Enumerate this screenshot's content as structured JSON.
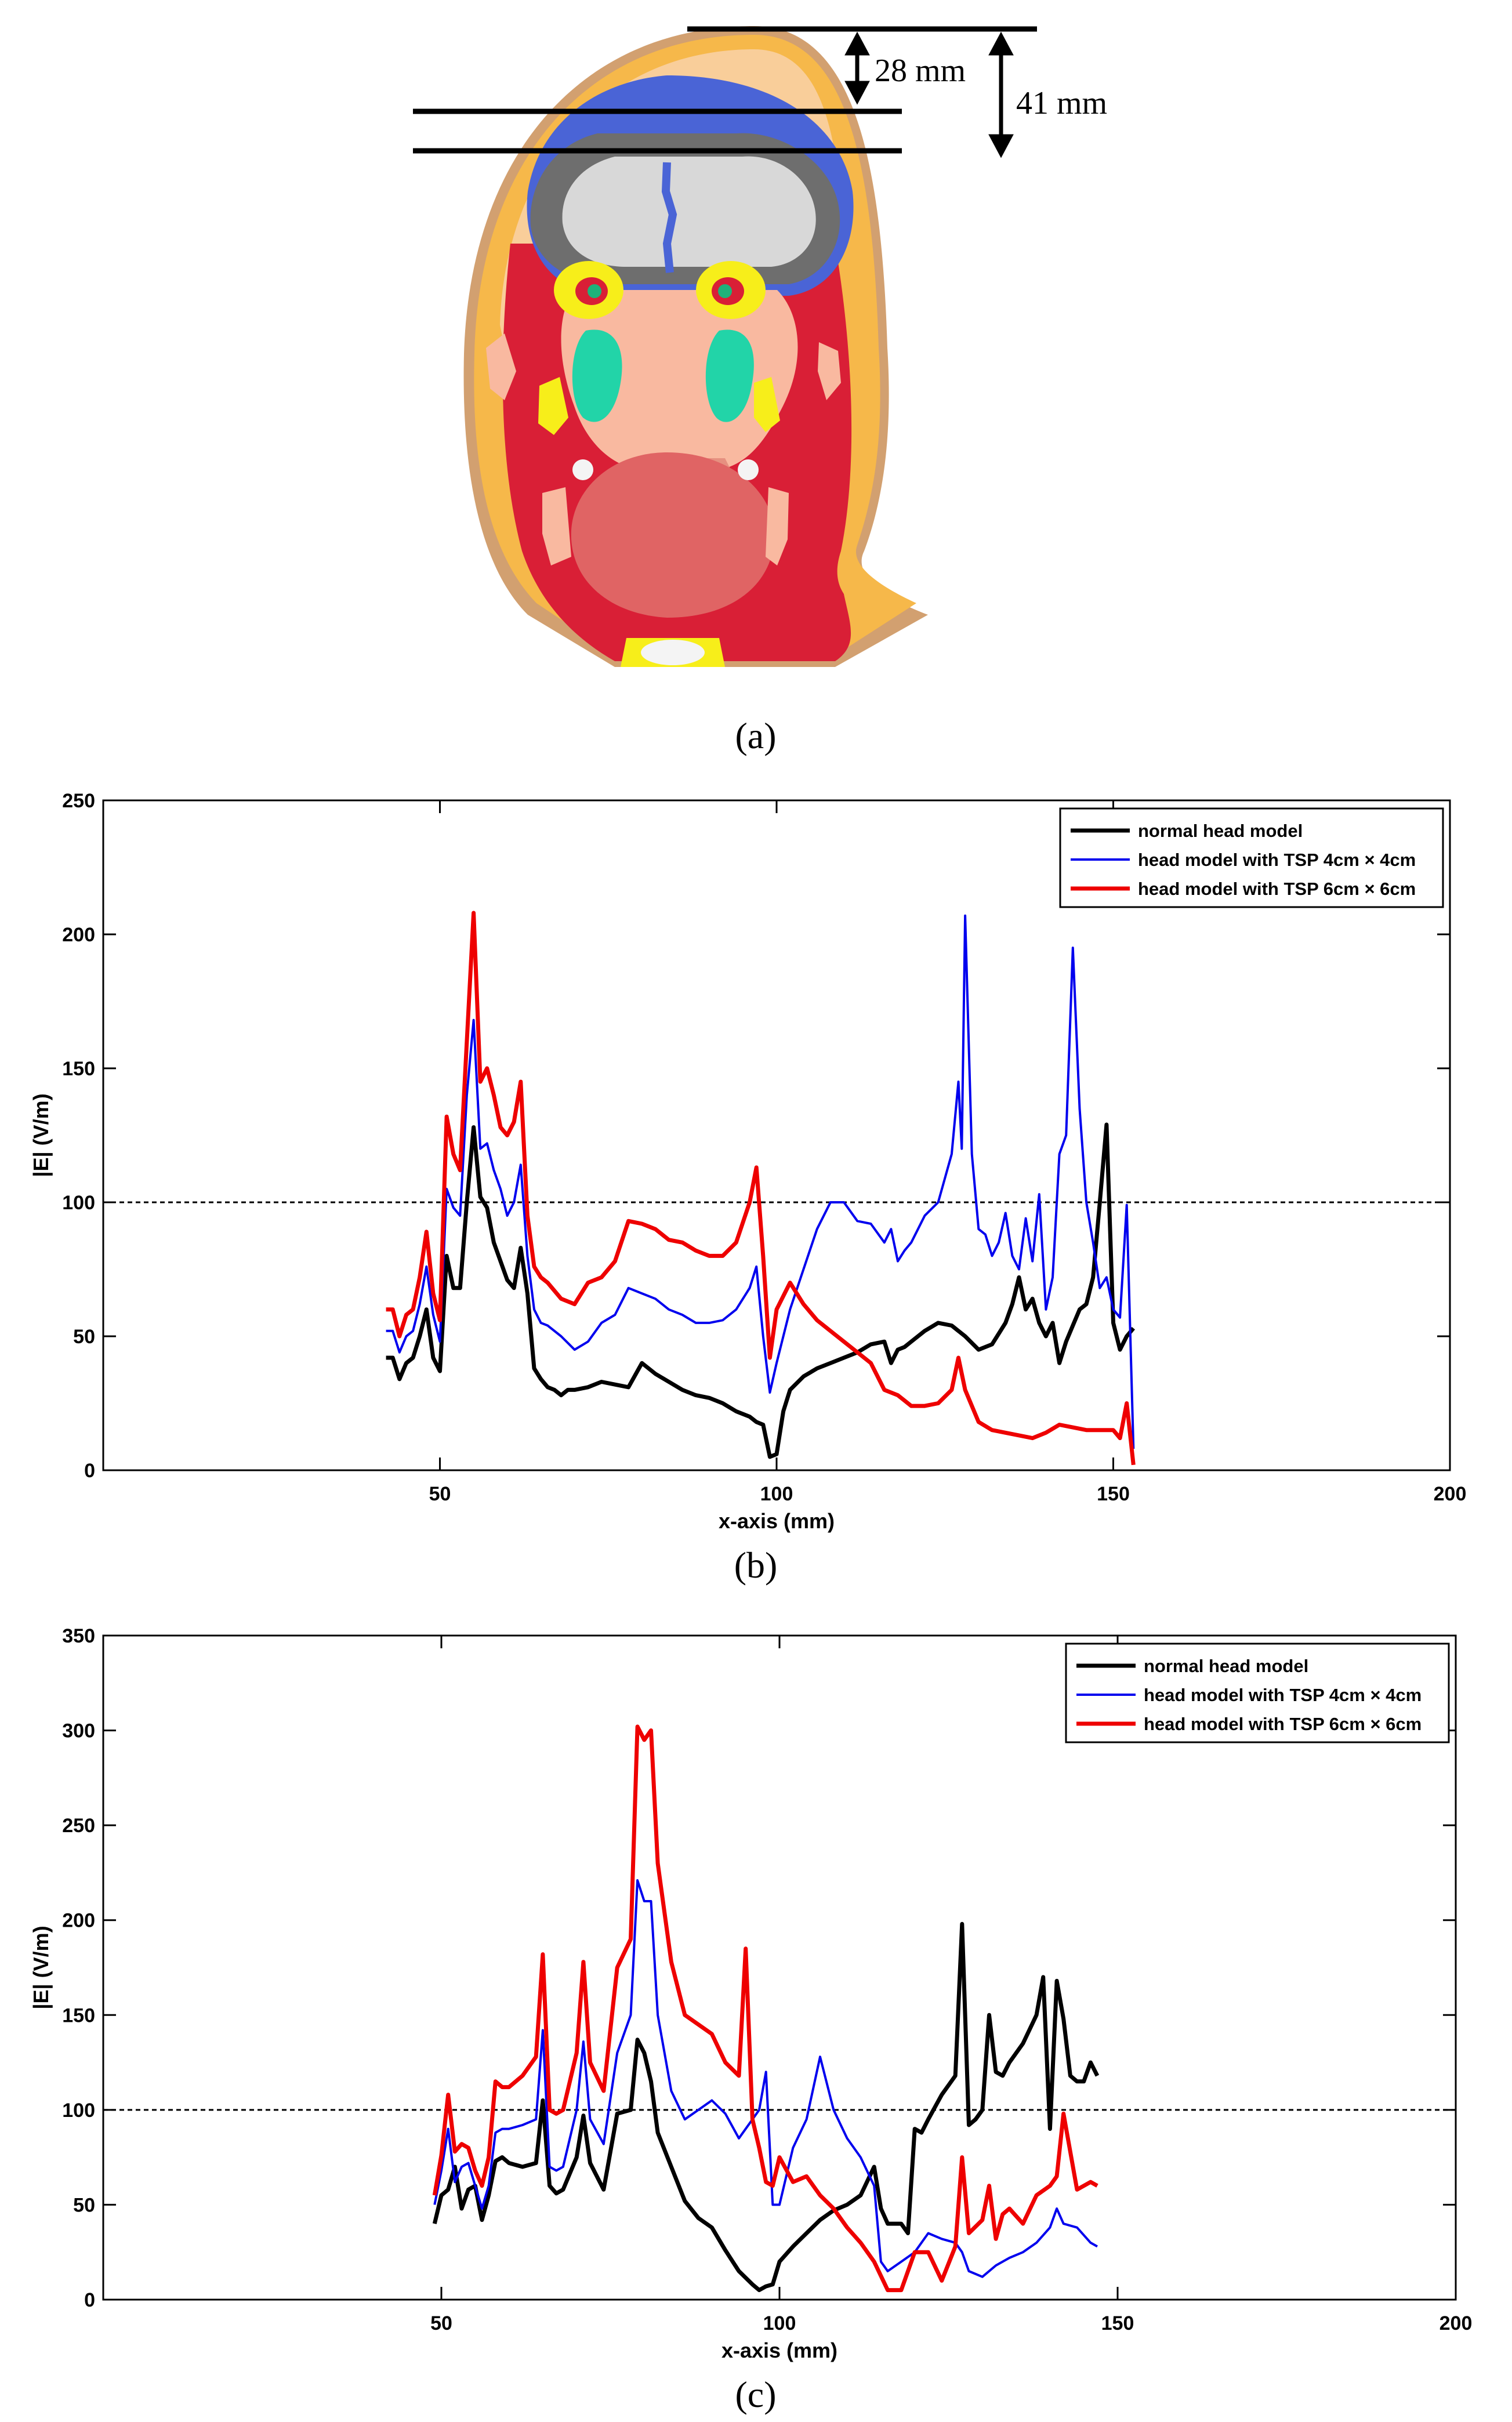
{
  "panel_a": {
    "caption": "(a)",
    "label_28": "28 mm",
    "label_41": "41 mm"
  },
  "chart_data": [
    {
      "type": "line",
      "caption": "(b)",
      "xlabel": "x-axis (mm)",
      "ylabel": "|E| (V/m)",
      "xlim": [
        0,
        200
      ],
      "ylim": [
        0,
        250
      ],
      "xticks": [
        50,
        100,
        150,
        200
      ],
      "yticks": [
        0,
        50,
        100,
        150,
        200,
        250
      ],
      "reference_line": 100,
      "legend_position": "top-right",
      "series": [
        {
          "name": "normal head model",
          "color": "#000000",
          "x": [
            42,
            43,
            44,
            45,
            46,
            47,
            48,
            49,
            50,
            51,
            52,
            53,
            54,
            55,
            56,
            57,
            58,
            59,
            60,
            61,
            62,
            63,
            64,
            65,
            66,
            67,
            68,
            69,
            70,
            72,
            74,
            76,
            78,
            80,
            82,
            84,
            86,
            88,
            90,
            92,
            94,
            96,
            97,
            98,
            99,
            100,
            101,
            102,
            104,
            106,
            108,
            110,
            112,
            114,
            116,
            117,
            118,
            119,
            120,
            122,
            124,
            126,
            128,
            130,
            132,
            134,
            135,
            136,
            137,
            138,
            139,
            140,
            141,
            142,
            143,
            144,
            145,
            146,
            147,
            148,
            149,
            150,
            151,
            152,
            153
          ],
          "y": [
            42,
            42,
            34,
            40,
            42,
            50,
            60,
            42,
            37,
            80,
            68,
            68,
            100,
            128,
            102,
            98,
            85,
            78,
            71,
            68,
            83,
            66,
            38,
            34,
            31,
            30,
            28,
            30,
            30,
            31,
            33,
            32,
            31,
            40,
            36,
            33,
            30,
            28,
            27,
            25,
            22,
            20,
            18,
            17,
            5,
            6,
            22,
            30,
            35,
            38,
            40,
            42,
            44,
            47,
            48,
            40,
            45,
            46,
            48,
            52,
            55,
            54,
            50,
            45,
            47,
            55,
            62,
            72,
            60,
            64,
            55,
            50,
            55,
            40,
            48,
            54,
            60,
            62,
            72,
            100,
            129,
            55,
            45,
            50,
            53
          ]
        },
        {
          "name": "head model with TSP 4cm × 4cm",
          "color": "#0000ee",
          "x": [
            42,
            43,
            44,
            45,
            46,
            47,
            48,
            49,
            50,
            51,
            52,
            53,
            54,
            55,
            56,
            57,
            58,
            59,
            60,
            61,
            62,
            63,
            64,
            65,
            66,
            68,
            70,
            72,
            74,
            76,
            78,
            80,
            82,
            84,
            86,
            88,
            90,
            92,
            94,
            96,
            97,
            98,
            99,
            100,
            102,
            104,
            106,
            108,
            110,
            112,
            114,
            116,
            117,
            118,
            119,
            120,
            122,
            124,
            126,
            127,
            127.5,
            128,
            129,
            130,
            131,
            132,
            133,
            134,
            135,
            136,
            137,
            138,
            139,
            140,
            141,
            142,
            143,
            144,
            145,
            146,
            147,
            148,
            149,
            150,
            151,
            152,
            153
          ],
          "y": [
            52,
            52,
            44,
            50,
            52,
            62,
            76,
            58,
            48,
            105,
            98,
            95,
            140,
            168,
            120,
            122,
            112,
            105,
            95,
            100,
            114,
            80,
            60,
            55,
            54,
            50,
            45,
            48,
            55,
            58,
            68,
            66,
            64,
            60,
            58,
            55,
            55,
            56,
            60,
            68,
            76,
            50,
            29,
            40,
            60,
            75,
            90,
            100,
            100,
            93,
            92,
            85,
            90,
            78,
            82,
            85,
            95,
            100,
            118,
            145,
            120,
            207,
            118,
            90,
            88,
            80,
            85,
            96,
            80,
            75,
            94,
            78,
            103,
            60,
            72,
            118,
            125,
            195,
            135,
            100,
            85,
            68,
            72,
            60,
            57,
            99,
            8
          ]
        },
        {
          "name": "head model with TSP 6cm × 6cm",
          "color": "#ee0000",
          "x": [
            42,
            43,
            44,
            45,
            46,
            47,
            48,
            49,
            50,
            51,
            52,
            53,
            54,
            55,
            56,
            57,
            58,
            59,
            60,
            61,
            62,
            63,
            64,
            65,
            66,
            68,
            70,
            72,
            74,
            76,
            78,
            80,
            82,
            84,
            86,
            88,
            90,
            92,
            94,
            96,
            97,
            98,
            99,
            100,
            102,
            104,
            106,
            108,
            110,
            112,
            114,
            116,
            118,
            120,
            122,
            124,
            126,
            127,
            128,
            130,
            132,
            134,
            136,
            138,
            140,
            142,
            144,
            146,
            148,
            150,
            151,
            152,
            153
          ],
          "y": [
            60,
            60,
            50,
            58,
            60,
            72,
            89,
            66,
            56,
            132,
            118,
            112,
            160,
            208,
            145,
            150,
            140,
            128,
            125,
            130,
            145,
            95,
            76,
            72,
            70,
            64,
            62,
            70,
            72,
            78,
            93,
            92,
            90,
            86,
            85,
            82,
            80,
            80,
            85,
            100,
            113,
            80,
            42,
            60,
            70,
            62,
            56,
            52,
            48,
            44,
            40,
            30,
            28,
            24,
            24,
            25,
            30,
            42,
            30,
            18,
            15,
            14,
            13,
            12,
            14,
            17,
            16,
            15,
            15,
            15,
            12,
            25,
            2
          ]
        }
      ]
    },
    {
      "type": "line",
      "caption": "(c)",
      "xlabel": "x-axis (mm)",
      "ylabel": "|E| (V/m)",
      "xlim": [
        0,
        200
      ],
      "ylim": [
        0,
        350
      ],
      "xticks": [
        50,
        100,
        150,
        200
      ],
      "yticks": [
        0,
        50,
        100,
        150,
        200,
        250,
        300,
        350
      ],
      "reference_line": 100,
      "legend_position": "top-right",
      "series": [
        {
          "name": "normal head model",
          "color": "#000000",
          "x": [
            49,
            50,
            51,
            52,
            53,
            54,
            55,
            56,
            57,
            58,
            59,
            60,
            62,
            64,
            65,
            66,
            67,
            68,
            70,
            71,
            72,
            74,
            76,
            78,
            79,
            80,
            81,
            82,
            84,
            86,
            88,
            90,
            92,
            94,
            96,
            97,
            98,
            99,
            100,
            102,
            104,
            106,
            108,
            110,
            112,
            114,
            115,
            116,
            118,
            119,
            120,
            121,
            122,
            124,
            126,
            127,
            128,
            129,
            130,
            131,
            132,
            133,
            134,
            136,
            138,
            139,
            140,
            141,
            142,
            143,
            144,
            145,
            146,
            147
          ],
          "y": [
            40,
            55,
            58,
            70,
            48,
            58,
            60,
            42,
            55,
            73,
            75,
            72,
            70,
            72,
            105,
            60,
            56,
            58,
            75,
            97,
            72,
            58,
            98,
            100,
            137,
            130,
            115,
            88,
            70,
            52,
            43,
            38,
            26,
            15,
            8,
            5,
            7,
            8,
            20,
            28,
            35,
            42,
            47,
            50,
            55,
            70,
            48,
            40,
            40,
            35,
            90,
            88,
            95,
            108,
            118,
            198,
            92,
            95,
            100,
            150,
            120,
            118,
            125,
            135,
            150,
            170,
            90,
            168,
            148,
            118,
            115,
            115,
            125,
            118
          ]
        },
        {
          "name": "head model with TSP 4cm × 4cm",
          "color": "#0000ee",
          "x": [
            49,
            50,
            51,
            52,
            53,
            54,
            55,
            56,
            57,
            58,
            59,
            60,
            62,
            64,
            65,
            66,
            67,
            68,
            70,
            71,
            72,
            74,
            76,
            78,
            79,
            80,
            81,
            82,
            84,
            86,
            88,
            90,
            92,
            94,
            96,
            97,
            98,
            99,
            100,
            102,
            104,
            106,
            108,
            110,
            112,
            114,
            115,
            116,
            118,
            120,
            122,
            124,
            126,
            127,
            128,
            130,
            132,
            134,
            136,
            138,
            140,
            141,
            142,
            144,
            146,
            147
          ],
          "y": [
            50,
            68,
            90,
            62,
            70,
            72,
            60,
            48,
            60,
            88,
            90,
            90,
            92,
            95,
            142,
            70,
            68,
            70,
            100,
            136,
            95,
            82,
            130,
            150,
            221,
            210,
            210,
            150,
            110,
            95,
            100,
            105,
            98,
            85,
            95,
            100,
            120,
            50,
            50,
            80,
            95,
            128,
            100,
            85,
            75,
            60,
            20,
            15,
            20,
            25,
            35,
            32,
            30,
            25,
            15,
            12,
            18,
            22,
            25,
            30,
            38,
            48,
            40,
            38,
            30,
            28
          ]
        },
        {
          "name": "head model with TSP 6cm × 6cm",
          "color": "#ee0000",
          "x": [
            49,
            50,
            51,
            52,
            53,
            54,
            55,
            56,
            57,
            58,
            59,
            60,
            62,
            64,
            65,
            66,
            67,
            68,
            70,
            71,
            72,
            74,
            76,
            78,
            79,
            80,
            81,
            82,
            84,
            86,
            88,
            90,
            92,
            94,
            95,
            96,
            97,
            98,
            99,
            100,
            102,
            104,
            106,
            108,
            110,
            112,
            114,
            116,
            118,
            120,
            122,
            124,
            126,
            127,
            128,
            130,
            131,
            132,
            133,
            134,
            136,
            138,
            140,
            141,
            142,
            144,
            146,
            147
          ],
          "y": [
            55,
            76,
            108,
            78,
            82,
            80,
            68,
            60,
            75,
            115,
            112,
            112,
            118,
            128,
            182,
            100,
            98,
            100,
            130,
            178,
            125,
            110,
            175,
            190,
            302,
            295,
            300,
            230,
            178,
            150,
            145,
            140,
            125,
            118,
            185,
            95,
            80,
            62,
            60,
            75,
            62,
            65,
            55,
            48,
            38,
            30,
            20,
            5,
            5,
            25,
            25,
            10,
            28,
            75,
            35,
            42,
            60,
            32,
            45,
            48,
            40,
            55,
            60,
            65,
            98,
            58,
            62,
            60
          ]
        }
      ]
    }
  ]
}
